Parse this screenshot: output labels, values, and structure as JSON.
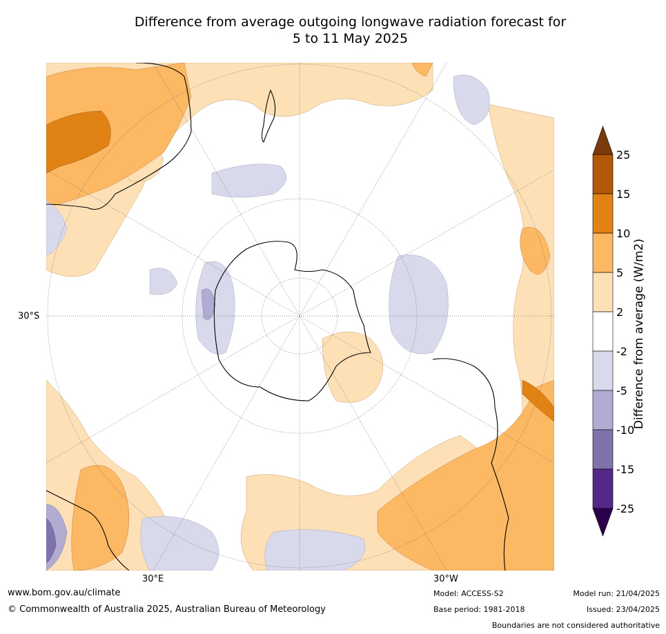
{
  "title": {
    "line1": "Difference from average outgoing longwave radiation forecast for",
    "line2": "5 to 11 May 2025"
  },
  "map": {
    "projection": "south-polar-stereographic",
    "labels": {
      "lat_30s": "30°S",
      "lon_30e": "30°E",
      "lon_30w": "30°W"
    }
  },
  "colorbar": {
    "label": "Difference from average (W/m2)",
    "ticks": [
      "25",
      "15",
      "10",
      "5",
      "2",
      "-2",
      "-5",
      "-10",
      "-15",
      "-25"
    ],
    "colors_top_to_bottom": [
      "#7a3a0a",
      "#b35806",
      "#e08214",
      "#fdb863",
      "#fee0b6",
      "#ffffff",
      "#d8daeb",
      "#b2abd2",
      "#8073ac",
      "#542788",
      "#2d004b"
    ]
  },
  "footer": {
    "website": "www.bom.gov.au/climate",
    "copyright": "© Commonwealth of Australia 2025, Australian Bureau of Meteorology",
    "model": "Model: ACCESS-S2",
    "base_period": "Base period: 1981-2018",
    "model_run": "Model run: 21/04/2025",
    "issued": "Issued: 23/04/2025",
    "disclaimer": "Boundaries are not considered authoritative"
  }
}
